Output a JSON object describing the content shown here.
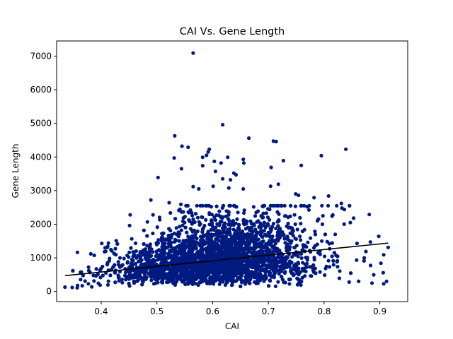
{
  "chart_data": {
    "type": "scatter",
    "title": "CAI Vs. Gene Length",
    "xlabel": "CAI",
    "ylabel": "Gene Length",
    "xlim": [
      0.32,
      0.95
    ],
    "ylim": [
      -300,
      7450
    ],
    "xticks": [
      "0.4",
      "0.5",
      "0.6",
      "0.7",
      "0.8",
      "0.9"
    ],
    "yticks": [
      "0",
      "1000",
      "2000",
      "3000",
      "4000",
      "5000",
      "6000",
      "7000"
    ],
    "grid": false,
    "point_color": "#001a80",
    "trend_color": "#000000",
    "trendline": {
      "x": [
        0.335,
        0.915
      ],
      "y": [
        470,
        1440
      ]
    },
    "outliers": [
      [
        0.565,
        7090
      ],
      [
        0.618,
        4960
      ],
      [
        0.532,
        4630
      ],
      [
        0.545,
        4320
      ],
      [
        0.556,
        4290
      ],
      [
        0.665,
        4560
      ],
      [
        0.709,
        4470
      ],
      [
        0.714,
        4460
      ],
      [
        0.839,
        4230
      ],
      [
        0.594,
        4230
      ],
      [
        0.592,
        4150
      ],
      [
        0.589,
        4050
      ],
      [
        0.795,
        4040
      ],
      [
        0.582,
        3990
      ],
      [
        0.627,
        3990
      ],
      [
        0.531,
        3970
      ],
      [
        0.655,
        3930
      ],
      [
        0.727,
        3890
      ],
      [
        0.603,
        3870
      ],
      [
        0.615,
        3820
      ],
      [
        0.656,
        3820
      ],
      [
        0.759,
        3750
      ],
      [
        0.582,
        3740
      ],
      [
        0.705,
        3690
      ],
      [
        0.544,
        3650
      ],
      [
        0.605,
        3570
      ],
      [
        0.638,
        3520
      ],
      [
        0.642,
        3470
      ],
      [
        0.502,
        3390
      ],
      [
        0.618,
        3350
      ],
      [
        0.632,
        3320
      ],
      [
        0.718,
        3190
      ],
      [
        0.601,
        3130
      ],
      [
        0.704,
        3130
      ],
      [
        0.565,
        3120
      ],
      [
        0.575,
        3050
      ],
      [
        0.629,
        3080
      ],
      [
        0.655,
        3050
      ],
      [
        0.808,
        2840
      ],
      [
        0.749,
        2900
      ],
      [
        0.754,
        2860
      ],
      [
        0.782,
        2790
      ],
      [
        0.831,
        2620
      ],
      [
        0.832,
        2480
      ],
      [
        0.881,
        2290
      ],
      [
        0.853,
        2180
      ],
      [
        0.847,
        2050
      ],
      [
        0.788,
        2100
      ],
      [
        0.797,
        2000
      ],
      [
        0.489,
        2720
      ],
      [
        0.522,
        2640
      ],
      [
        0.543,
        2590
      ],
      [
        0.452,
        2280
      ],
      [
        0.493,
        2280
      ],
      [
        0.483,
        2070
      ],
      [
        0.451,
        1960
      ],
      [
        0.427,
        1510
      ],
      [
        0.401,
        1430
      ],
      [
        0.411,
        1310
      ],
      [
        0.419,
        1210
      ],
      [
        0.883,
        1470
      ],
      [
        0.859,
        1430
      ],
      [
        0.898,
        1640
      ],
      [
        0.875,
        1190
      ],
      [
        0.907,
        1090
      ],
      [
        0.872,
        1000
      ],
      [
        0.915,
        1310
      ],
      [
        0.902,
        840
      ],
      [
        0.906,
        560
      ],
      [
        0.912,
        300
      ],
      [
        0.907,
        230
      ],
      [
        0.886,
        250
      ],
      [
        0.862,
        300
      ],
      [
        0.348,
        120
      ],
      [
        0.357,
        110
      ],
      [
        0.335,
        130
      ],
      [
        0.366,
        170
      ],
      [
        0.377,
        230
      ],
      [
        0.383,
        140
      ],
      [
        0.394,
        510
      ],
      [
        0.371,
        310
      ],
      [
        0.398,
        190
      ],
      [
        0.411,
        800
      ],
      [
        0.424,
        790
      ],
      [
        0.407,
        1300
      ],
      [
        0.413,
        1440
      ]
    ]
  }
}
